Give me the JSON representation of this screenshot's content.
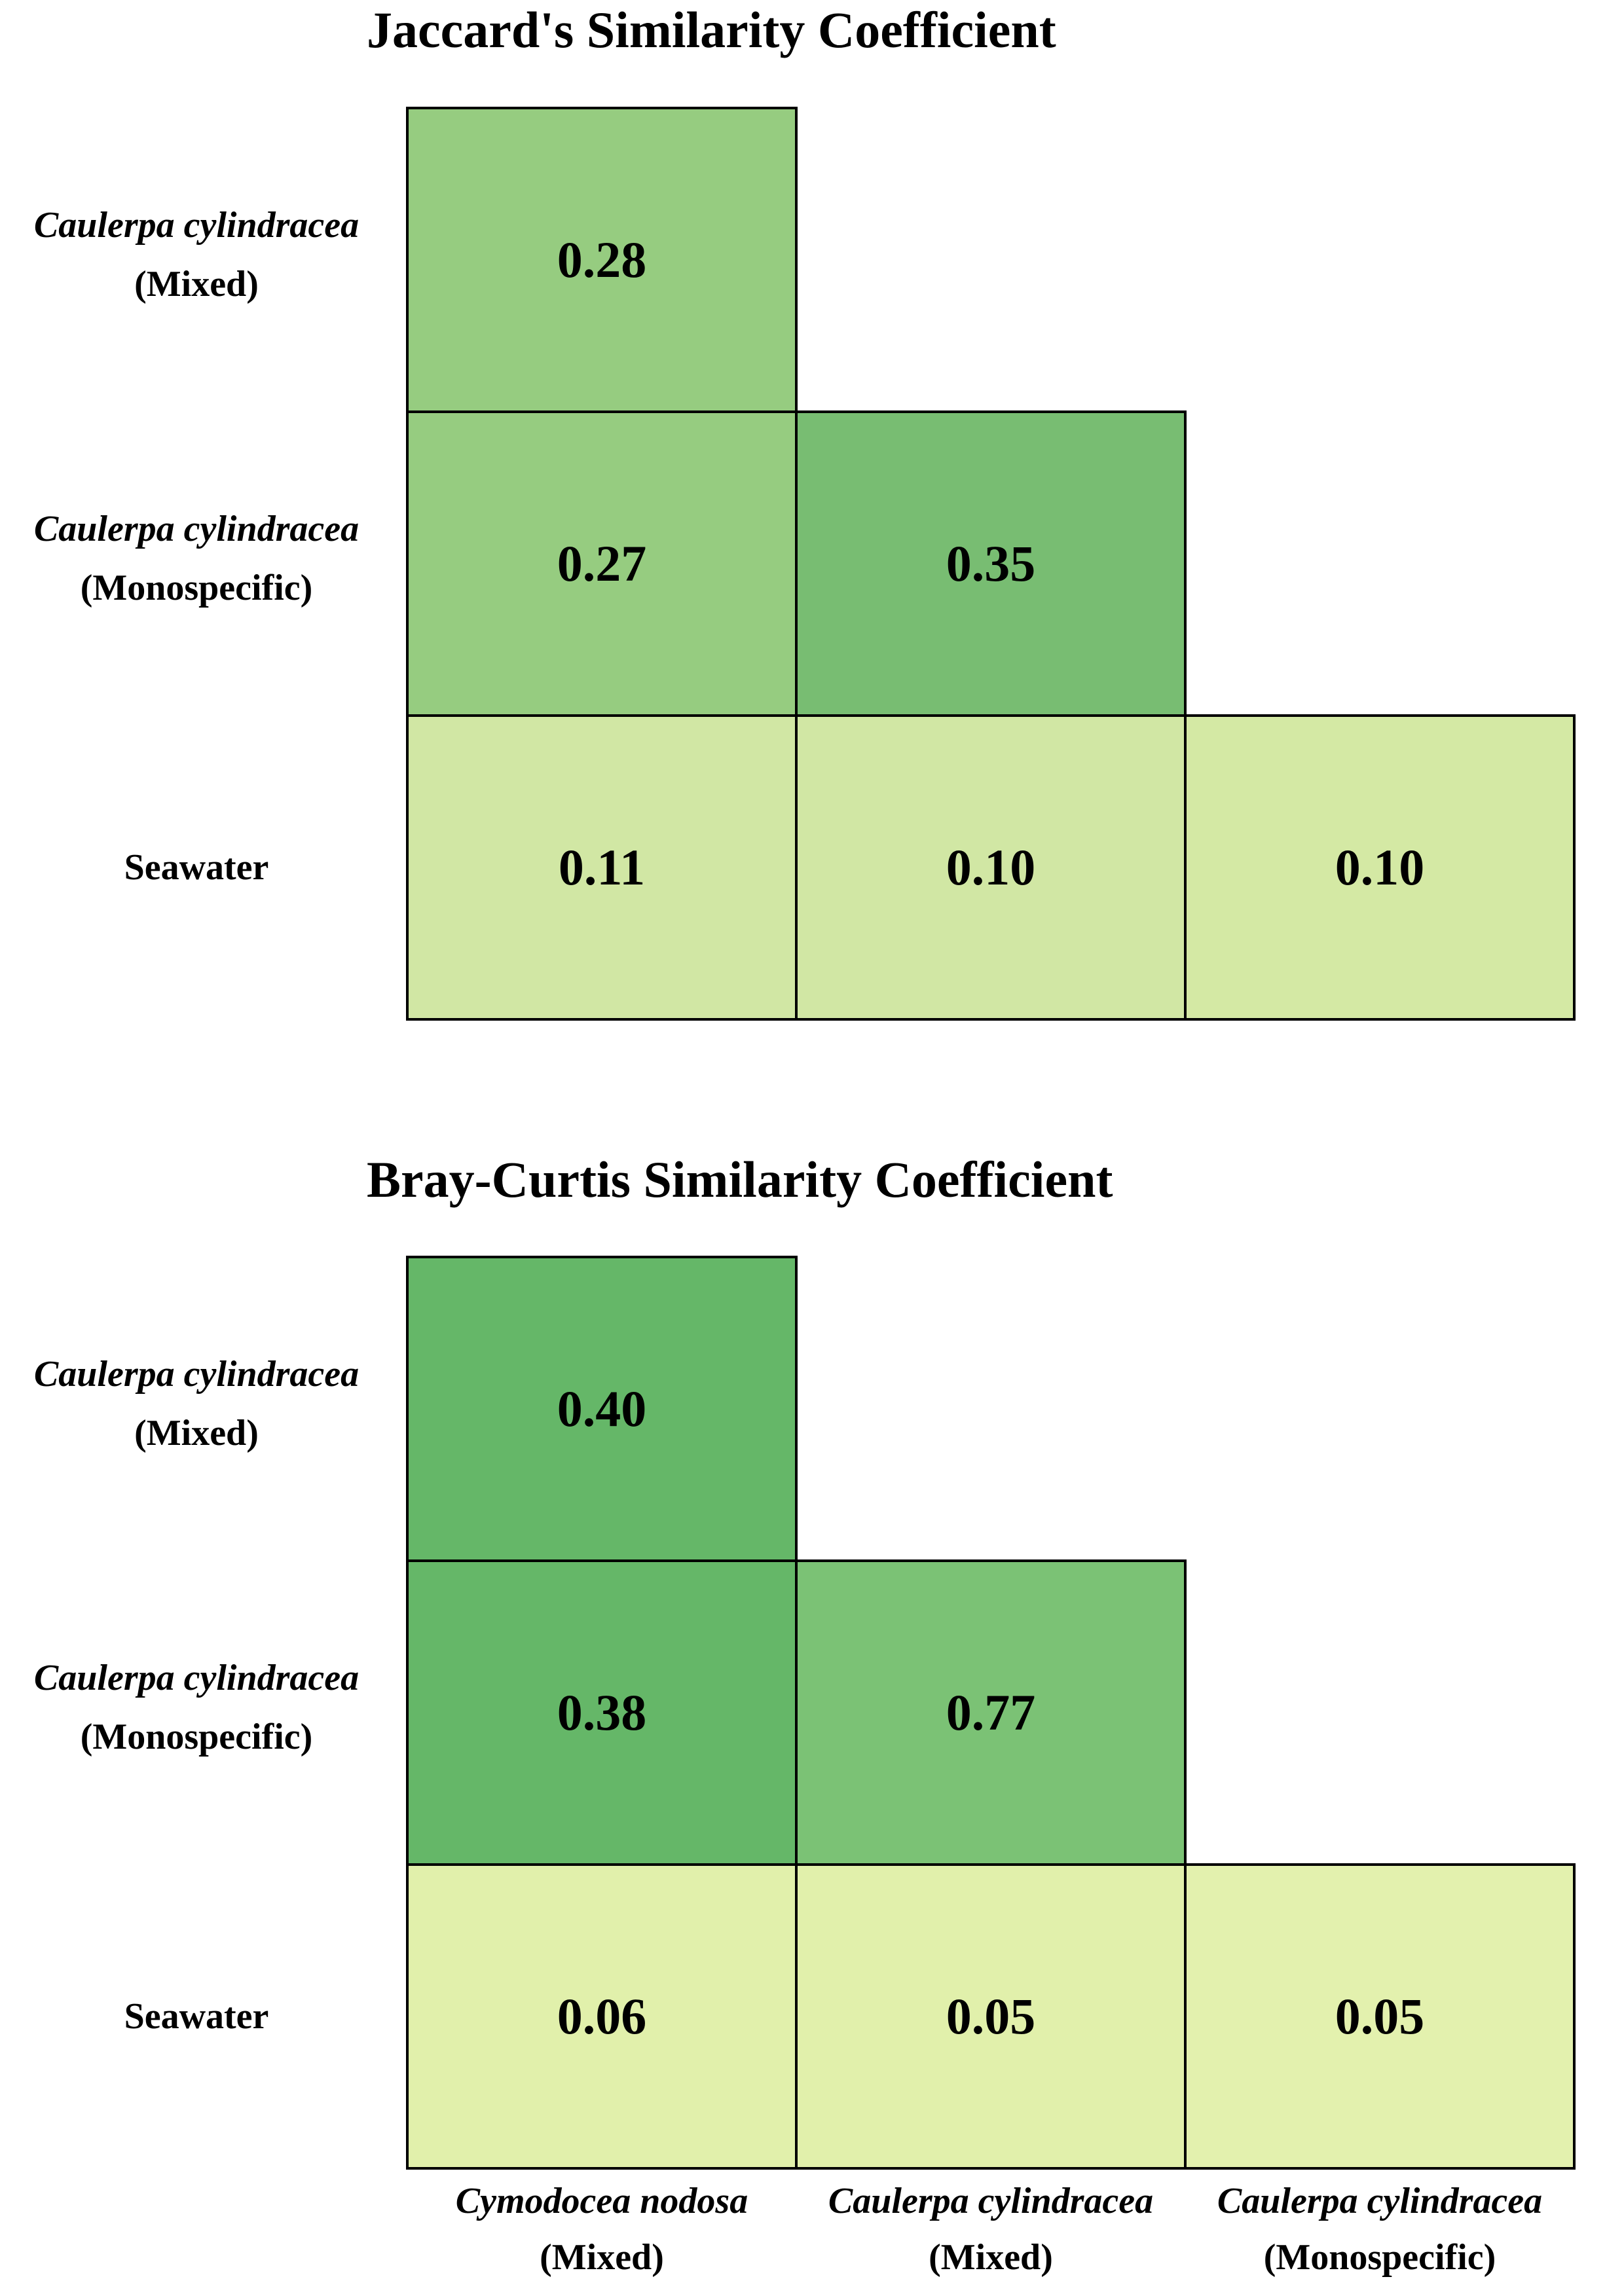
{
  "chart_data": [
    {
      "type": "heatmap",
      "title": "Jaccard's Similarity Coefficient",
      "rows": [
        {
          "italic": "Caulerpa cylindracea",
          "plain": "(Mixed)"
        },
        {
          "italic": "Caulerpa cylindracea",
          "plain": "(Monospecific)"
        },
        {
          "italic": "",
          "plain": "Seawater"
        }
      ],
      "columns": [
        {
          "italic": "Cymodocea nodosa",
          "plain": "(Mixed)"
        },
        {
          "italic": "Caulerpa cylindracea",
          "plain": "(Mixed)"
        },
        {
          "italic": "Caulerpa cylindracea",
          "plain": "(Monospecific)"
        }
      ],
      "values": [
        [
          "0.28",
          null,
          null
        ],
        [
          "0.27",
          "0.35",
          null
        ],
        [
          "0.11",
          "0.10",
          "0.10"
        ]
      ],
      "colors": [
        [
          "#96cc80",
          null,
          null
        ],
        [
          "#96cc80",
          "#78bd72",
          null
        ],
        [
          "#d1e7a4",
          "#d1e7a4",
          "#d4e9a4"
        ]
      ]
    },
    {
      "type": "heatmap",
      "title": "Bray-Curtis Similarity Coefficient",
      "rows": [
        {
          "italic": "Caulerpa cylindracea",
          "plain": "(Mixed)"
        },
        {
          "italic": "Caulerpa cylindracea",
          "plain": "(Monospecific)"
        },
        {
          "italic": "",
          "plain": "Seawater"
        }
      ],
      "columns": [
        {
          "italic": "Cymodocea nodosa",
          "plain": "(Mixed)"
        },
        {
          "italic": "Caulerpa cylindracea",
          "plain": "(Mixed)"
        },
        {
          "italic": "Caulerpa cylindracea",
          "plain": "(Monospecific)"
        }
      ],
      "values": [
        [
          "0.40",
          null,
          null
        ],
        [
          "0.38",
          "0.77",
          null
        ],
        [
          "0.06",
          "0.05",
          "0.05"
        ]
      ],
      "colors": [
        [
          "#65b768",
          null,
          null
        ],
        [
          "#65b768",
          "#7bc275",
          null
        ],
        [
          "#e1f0ab",
          "#e1f0ab",
          "#e3f1ae"
        ]
      ]
    }
  ]
}
